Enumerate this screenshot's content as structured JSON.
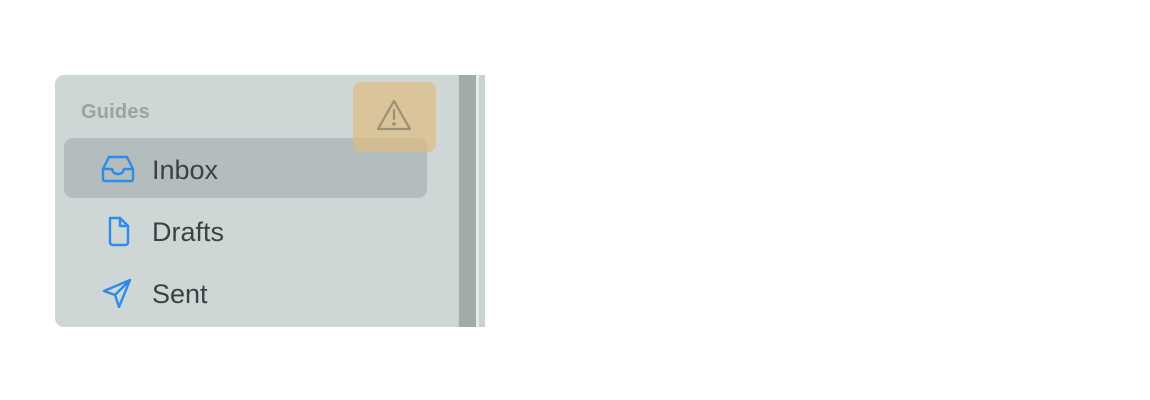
{
  "sidebar": {
    "section_title": "Guides",
    "items": [
      {
        "label": "Inbox",
        "icon": "inbox-tray-icon",
        "selected": true
      },
      {
        "label": "Drafts",
        "icon": "document-icon",
        "selected": false
      },
      {
        "label": "Sent",
        "icon": "paper-plane-icon",
        "selected": false
      }
    ],
    "warning_icon": "warning-triangle-icon"
  },
  "colors": {
    "accent": "#2f8bea",
    "sidebar_bg": "#cfd7d6",
    "selected_bg": "#b4bdbd",
    "warning_overlay": "#e0ba7a",
    "label_text": "#3c4142",
    "section_text": "#9aa3a2"
  }
}
